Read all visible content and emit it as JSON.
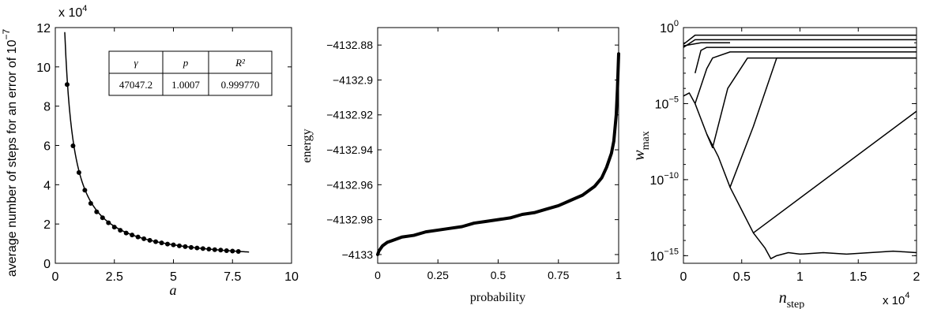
{
  "chart_data": [
    {
      "type": "scatter",
      "xlabel": "a",
      "ylabel": "average number of steps for an error of 10",
      "ylabel_exp": "−7",
      "y_multiplier_base": "x 10",
      "y_multiplier_exp": "4",
      "xlim": [
        0,
        10
      ],
      "ylim": [
        0,
        12
      ],
      "xticks": [
        0,
        2.5,
        5,
        7.5,
        10
      ],
      "xtick_labels": [
        "0",
        "2.5",
        "5",
        "7.5",
        "10"
      ],
      "yticks": [
        0,
        2,
        4,
        6,
        8,
        10,
        12
      ],
      "ytick_labels": [
        "0",
        "2",
        "4",
        "6",
        "8",
        "10",
        "12"
      ],
      "fit": {
        "gamma": 47047.2,
        "p": 1.0007,
        "xmin": 0.4,
        "xmax": 8.2
      },
      "points": {
        "x": [
          0.5,
          0.75,
          1.0,
          1.25,
          1.5,
          1.75,
          2.0,
          2.25,
          2.5,
          2.75,
          3.0,
          3.25,
          3.5,
          3.75,
          4.0,
          4.25,
          4.5,
          4.75,
          5.0,
          5.25,
          5.5,
          5.75,
          6.0,
          6.25,
          6.5,
          6.75,
          7.0,
          7.25,
          7.5,
          7.75
        ],
        "y": [
          9.1,
          5.98,
          4.62,
          3.72,
          3.05,
          2.62,
          2.32,
          2.06,
          1.84,
          1.68,
          1.54,
          1.44,
          1.34,
          1.25,
          1.17,
          1.1,
          1.04,
          0.98,
          0.94,
          0.89,
          0.85,
          0.81,
          0.78,
          0.75,
          0.72,
          0.69,
          0.67,
          0.64,
          0.62,
          0.6
        ]
      },
      "table": {
        "headers": [
          "γ",
          "p",
          "R²"
        ],
        "values": [
          "47047.2",
          "1.0007",
          "0.999770"
        ]
      }
    },
    {
      "type": "line",
      "xlabel": "probability",
      "ylabel": "energy",
      "xlim": [
        0,
        1
      ],
      "ylim": [
        -4133.005,
        -4132.87
      ],
      "xticks": [
        0,
        0.25,
        0.5,
        0.75,
        1
      ],
      "xtick_labels": [
        "0",
        "0.25",
        "0.5",
        "0.75",
        "1"
      ],
      "yticks": [
        -4133,
        -4132.98,
        -4132.96,
        -4132.94,
        -4132.92,
        -4132.9,
        -4132.88
      ],
      "ytick_labels": [
        "−4133",
        "−4132.98",
        "−4132.96",
        "−4132.94",
        "−4132.92",
        "−4132.9",
        "−4132.88"
      ],
      "series": [
        {
          "x": [
            0,
            0.005,
            0.01,
            0.02,
            0.04,
            0.06,
            0.1,
            0.15,
            0.2,
            0.25,
            0.3,
            0.35,
            0.4,
            0.45,
            0.5,
            0.55,
            0.6,
            0.65,
            0.7,
            0.75,
            0.8,
            0.85,
            0.9,
            0.93,
            0.95,
            0.97,
            0.98,
            0.99,
            0.995,
            1.0
          ],
          "y": [
            -4133.0,
            -4132.998,
            -4132.997,
            -4132.995,
            -4132.993,
            -4132.992,
            -4132.99,
            -4132.989,
            -4132.987,
            -4132.986,
            -4132.985,
            -4132.984,
            -4132.982,
            -4132.981,
            -4132.98,
            -4132.979,
            -4132.977,
            -4132.976,
            -4132.974,
            -4132.972,
            -4132.969,
            -4132.966,
            -4132.961,
            -4132.956,
            -4132.95,
            -4132.942,
            -4132.935,
            -4132.92,
            -4132.905,
            -4132.885
          ]
        }
      ]
    },
    {
      "type": "line",
      "xlabel": "n",
      "xlabel_sub": "step",
      "ylabel": "w",
      "ylabel_sub": "max",
      "x_multiplier_base": "x 10",
      "x_multiplier_exp": "4",
      "yscale": "log",
      "xlim": [
        0,
        2
      ],
      "ylim_log10": [
        -15.5,
        0
      ],
      "xticks": [
        0,
        0.5,
        1,
        1.5,
        2
      ],
      "xtick_labels": [
        "0",
        "0.5",
        "1",
        "1.5",
        "2"
      ],
      "yticks_log10": [
        0,
        -5,
        -10,
        -15
      ],
      "ytick_base": "10",
      "ytick_exps": [
        "0",
        "−5",
        "−10",
        "−15"
      ],
      "series": [
        {
          "x": [
            0,
            0.1,
            2.0
          ],
          "log10_y": [
            -1.1,
            -0.5,
            -0.5
          ]
        },
        {
          "x": [
            0,
            0.1,
            2.0
          ],
          "log10_y": [
            -1.3,
            -0.8,
            -0.8
          ]
        },
        {
          "x": [
            0,
            0.15,
            0.4
          ],
          "log10_y": [
            -1.2,
            -1.0,
            -1.0
          ]
        },
        {
          "x": [
            0.1,
            0.15,
            0.2,
            2.0
          ],
          "log10_y": [
            -3.0,
            -1.5,
            -1.3,
            -1.3
          ]
        },
        {
          "x": [
            0,
            0.05,
            0.1,
            0.2,
            0.25,
            0.4,
            2.0
          ],
          "log10_y": [
            -4.5,
            -4.3,
            -5.0,
            -2.7,
            -2.0,
            -1.6,
            -1.6
          ]
        },
        {
          "x": [
            0.1,
            0.15,
            0.2,
            0.25,
            0.38,
            0.55,
            2.0
          ],
          "log10_y": [
            -5.0,
            -6.0,
            -7.0,
            -7.9,
            -4.0,
            -2.0,
            -2.0
          ]
        },
        {
          "x": [
            0.2,
            0.3,
            0.4,
            0.6,
            0.8,
            2.0
          ],
          "log10_y": [
            -7.0,
            -8.5,
            -10.5,
            -6.5,
            -2.0,
            -2.0
          ]
        },
        {
          "x": [
            0.4,
            0.5,
            0.6,
            2.0
          ],
          "log10_y": [
            -10.5,
            -12.0,
            -13.5,
            -5.5
          ]
        },
        {
          "x": [
            0.6,
            0.7,
            0.75,
            0.8,
            0.9,
            1.0,
            1.2,
            1.4,
            1.6,
            1.8,
            2.0
          ],
          "log10_y": [
            -13.5,
            -14.5,
            -15.2,
            -15.0,
            -14.8,
            -14.9,
            -14.8,
            -14.9,
            -14.8,
            -14.7,
            -14.8
          ]
        }
      ]
    }
  ]
}
